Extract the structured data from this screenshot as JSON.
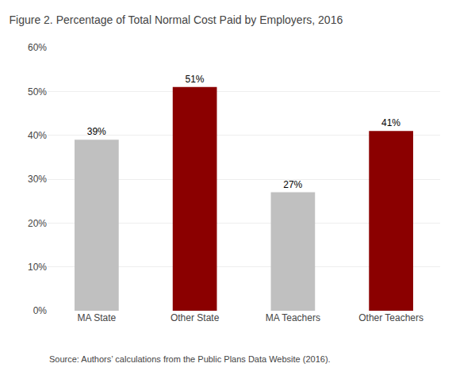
{
  "chart_data": {
    "type": "bar",
    "title": "Figure 2. Percentage of Total Normal Cost Paid by Employers, 2016",
    "categories": [
      "MA State",
      "Other State",
      "MA Teachers",
      "Other Teachers"
    ],
    "values": [
      0.39,
      0.51,
      0.27,
      0.41
    ],
    "value_labels": [
      "39%",
      "51%",
      "27%",
      "41%"
    ],
    "colors": [
      "#c0c0c0",
      "#8b0000",
      "#c0c0c0",
      "#8b0000"
    ],
    "ylim": [
      0,
      0.6
    ],
    "yticks": [
      {
        "value": 0.0,
        "label": "0%"
      },
      {
        "value": 0.1,
        "label": "10%"
      },
      {
        "value": 0.2,
        "label": "20%"
      },
      {
        "value": 0.3,
        "label": "30%"
      },
      {
        "value": 0.4,
        "label": "40%"
      },
      {
        "value": 0.5,
        "label": "50%"
      },
      {
        "value": 0.6,
        "label": "60%"
      }
    ],
    "grid": true,
    "data_labels": true,
    "annotations": [
      "Source: Authors’ calculations from the Public Plans Data Website (2016)."
    ]
  }
}
